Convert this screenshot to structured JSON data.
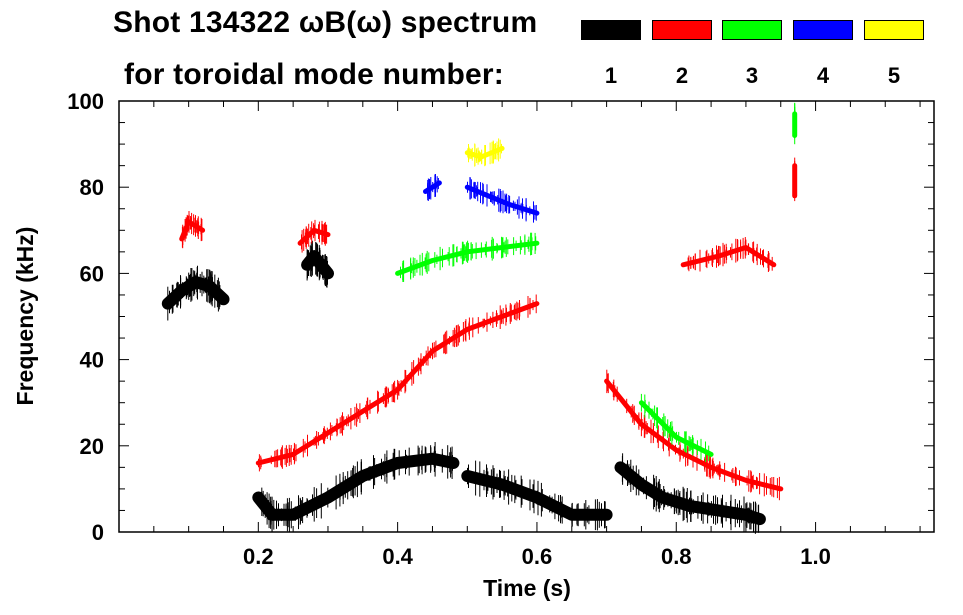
{
  "header": {
    "title_line1": "Shot 134322 ωB(ω) spectrum",
    "title_line2": "for toroidal mode number:"
  },
  "legend": [
    {
      "label": "1",
      "color": "#000000"
    },
    {
      "label": "2",
      "color": "#ff0000"
    },
    {
      "label": "3",
      "color": "#00ff00"
    },
    {
      "label": "4",
      "color": "#0000ff"
    },
    {
      "label": "5",
      "color": "#ffff00"
    }
  ],
  "chart_data": {
    "type": "heatmap",
    "title": "Shot 134322 ωB(ω) spectrum for toroidal mode number:",
    "xlabel": "Time (s)",
    "ylabel": "Frequency (kHz)",
    "xlim": [
      0.0,
      1.17
    ],
    "ylim": [
      0,
      100
    ],
    "x_ticks": [
      "0.2",
      "0.4",
      "0.6",
      "0.8",
      "1.0"
    ],
    "y_ticks": [
      "0",
      "20",
      "40",
      "60",
      "80",
      "100"
    ],
    "grid": false,
    "legend_position": "top-right",
    "series": [
      {
        "mode": "1",
        "color": "#000000",
        "traces": [
          {
            "x": [
              0.07,
              0.09,
              0.11,
              0.13,
              0.15
            ],
            "y": [
              53,
              56,
              58,
              57,
              54
            ]
          },
          {
            "x": [
              0.2,
              0.22,
              0.25,
              0.3,
              0.35,
              0.4,
              0.45,
              0.48
            ],
            "y": [
              8,
              4,
              4,
              8,
              13,
              16,
              17,
              16
            ]
          },
          {
            "x": [
              0.27,
              0.28,
              0.29,
              0.3
            ],
            "y": [
              62,
              64,
              62,
              60
            ]
          },
          {
            "x": [
              0.72,
              0.75,
              0.78,
              0.82,
              0.86,
              0.9,
              0.92
            ],
            "y": [
              15,
              11,
              8,
              6,
              5,
              4,
              3
            ]
          },
          {
            "x": [
              0.5,
              0.55,
              0.6,
              0.65,
              0.7
            ],
            "y": [
              13,
              11,
              8,
              4,
              4
            ]
          }
        ]
      },
      {
        "mode": "2",
        "color": "#ff0000",
        "traces": [
          {
            "x": [
              0.2,
              0.25,
              0.3,
              0.35,
              0.4,
              0.45,
              0.5,
              0.55,
              0.6
            ],
            "y": [
              16,
              18,
              23,
              28,
              33,
              42,
              47,
              50,
              53
            ]
          },
          {
            "x": [
              0.26,
              0.28,
              0.3
            ],
            "y": [
              67,
              70,
              69
            ]
          },
          {
            "x": [
              0.09,
              0.1,
              0.12
            ],
            "y": [
              68,
              72,
              70
            ]
          },
          {
            "x": [
              0.7,
              0.75,
              0.8,
              0.85,
              0.9,
              0.95
            ],
            "y": [
              35,
              25,
              19,
              15,
              12,
              10
            ]
          },
          {
            "x": [
              0.81,
              0.86,
              0.9,
              0.94
            ],
            "y": [
              62,
              64,
              66,
              62
            ]
          },
          {
            "x": [
              0.97,
              0.97
            ],
            "y": [
              78,
              85
            ]
          }
        ]
      },
      {
        "mode": "3",
        "color": "#00ff00",
        "traces": [
          {
            "x": [
              0.4,
              0.45,
              0.5,
              0.55,
              0.6
            ],
            "y": [
              60,
              63,
              65,
              66,
              67
            ]
          },
          {
            "x": [
              0.75,
              0.8,
              0.85
            ],
            "y": [
              30,
              22,
              18
            ]
          },
          {
            "x": [
              0.97,
              0.97
            ],
            "y": [
              92,
              97
            ]
          }
        ]
      },
      {
        "mode": "4",
        "color": "#0000ff",
        "traces": [
          {
            "x": [
              0.44,
              0.46
            ],
            "y": [
              79,
              81
            ]
          },
          {
            "x": [
              0.5,
              0.53,
              0.56,
              0.6
            ],
            "y": [
              80,
              78,
              76,
              74
            ]
          }
        ]
      },
      {
        "mode": "5",
        "color": "#ffff00",
        "traces": [
          {
            "x": [
              0.5,
              0.52,
              0.55
            ],
            "y": [
              88,
              87,
              89
            ]
          }
        ]
      }
    ]
  }
}
